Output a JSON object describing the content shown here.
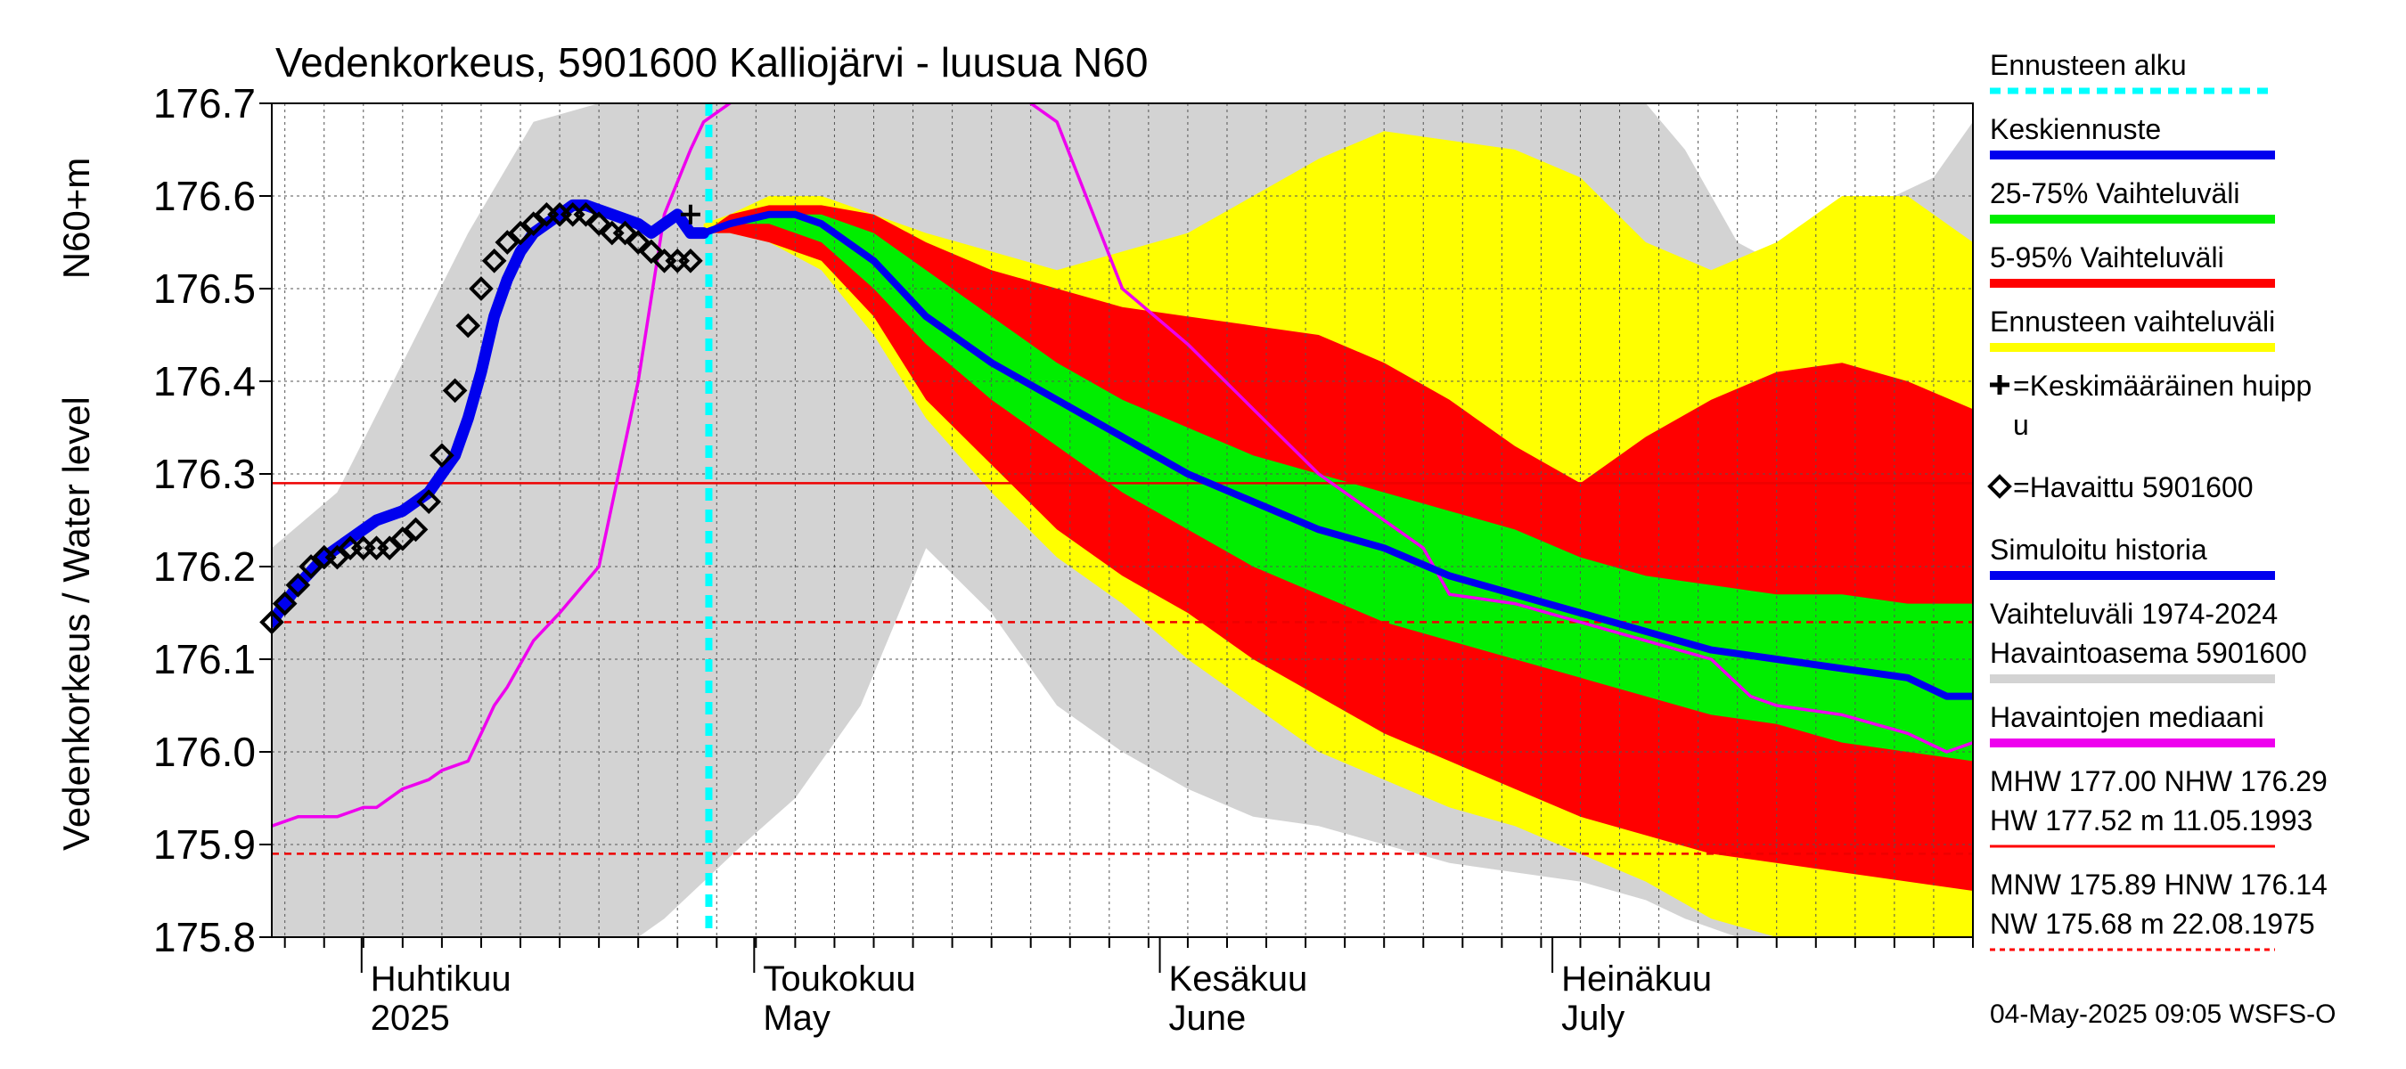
{
  "chart_data": {
    "type": "area",
    "title": "Vedenkorkeus, 5901600 Kalliojärvi - luusua N60",
    "ylabel_unit": "N60+m",
    "ylabel": "Vedenkorkeus / Water level",
    "ylim": [
      175.8,
      176.7
    ],
    "yticks": [
      "176.7",
      "176.6",
      "176.5",
      "176.4",
      "176.3",
      "176.2",
      "176.1",
      "176.0",
      "175.9",
      "175.8"
    ],
    "x_unit": "days since 2025-03-25",
    "xlim": [
      0,
      130
    ],
    "months": [
      {
        "fi": "Huhtikuu",
        "en": "2025",
        "day": 7
      },
      {
        "fi": "Toukokuu",
        "en": "May",
        "day": 37
      },
      {
        "fi": "Kesäkuu",
        "en": "June",
        "day": 68
      },
      {
        "fi": "Heinäkuu",
        "en": "July",
        "day": 98
      }
    ],
    "forecast_start_day": 33.4,
    "reference_lines": [
      {
        "name": "NHW",
        "value": 176.29,
        "style": "solid"
      },
      {
        "name": "HNW",
        "value": 176.14,
        "style": "dashed"
      },
      {
        "name": "MNW",
        "value": 175.89,
        "style": "dashed"
      }
    ],
    "series": [
      {
        "name": "Vaihteluväli 1974-2024 Havaintoasema 5901600",
        "kind": "band",
        "color": "#d3d3d3",
        "x": [
          0,
          5,
          10,
          15,
          20,
          25,
          28,
          30,
          33,
          36,
          40,
          45,
          50,
          55,
          60,
          65,
          70,
          75,
          80,
          85,
          90,
          95,
          100,
          105,
          108,
          112,
          116,
          120,
          124,
          127,
          130
        ],
        "upper": [
          176.22,
          176.28,
          176.42,
          176.56,
          176.68,
          176.7,
          176.7,
          176.7,
          176.7,
          176.7,
          176.7,
          176.7,
          176.7,
          176.7,
          176.7,
          176.7,
          176.7,
          176.7,
          176.7,
          176.7,
          176.7,
          176.7,
          176.7,
          176.7,
          176.65,
          176.55,
          176.52,
          176.6,
          176.6,
          176.62,
          176.68
        ],
        "lower": [
          175.8,
          175.8,
          175.8,
          175.8,
          175.8,
          175.8,
          175.8,
          175.82,
          175.86,
          175.9,
          175.95,
          176.05,
          176.22,
          176.15,
          176.05,
          176.0,
          175.96,
          175.93,
          175.92,
          175.9,
          175.88,
          175.87,
          175.86,
          175.84,
          175.82,
          175.8,
          175.8,
          175.8,
          175.8,
          175.8,
          175.8
        ]
      },
      {
        "name": "Ennusteen vaihteluväli",
        "kind": "band",
        "color": "#ffff00",
        "x": [
          33,
          35,
          38,
          42,
          46,
          50,
          55,
          60,
          65,
          70,
          75,
          80,
          85,
          90,
          95,
          100,
          105,
          110,
          115,
          120,
          125,
          130
        ],
        "upper": [
          176.57,
          176.58,
          176.6,
          176.6,
          176.58,
          176.56,
          176.54,
          176.52,
          176.54,
          176.56,
          176.6,
          176.64,
          176.67,
          176.66,
          176.65,
          176.62,
          176.55,
          176.52,
          176.55,
          176.6,
          176.6,
          176.55
        ],
        "lower": [
          176.56,
          176.56,
          176.55,
          176.52,
          176.45,
          176.36,
          176.28,
          176.21,
          176.16,
          176.1,
          176.05,
          176.0,
          175.97,
          175.94,
          175.92,
          175.89,
          175.86,
          175.82,
          175.8,
          175.8,
          175.8,
          175.8
        ]
      },
      {
        "name": "5-95% Vaihteluväli",
        "kind": "band",
        "color": "#ff0000",
        "x": [
          33,
          35,
          38,
          42,
          46,
          50,
          55,
          60,
          65,
          70,
          75,
          80,
          85,
          90,
          95,
          100,
          105,
          110,
          115,
          120,
          125,
          130
        ],
        "upper": [
          176.56,
          176.58,
          176.59,
          176.59,
          176.58,
          176.55,
          176.52,
          176.5,
          176.48,
          176.47,
          176.46,
          176.45,
          176.42,
          176.38,
          176.33,
          176.29,
          176.34,
          176.38,
          176.41,
          176.42,
          176.4,
          176.37
        ],
        "lower": [
          176.56,
          176.56,
          176.55,
          176.53,
          176.47,
          176.38,
          176.31,
          176.24,
          176.19,
          176.15,
          176.1,
          176.06,
          176.02,
          175.99,
          175.96,
          175.93,
          175.91,
          175.89,
          175.88,
          175.87,
          175.86,
          175.85
        ]
      },
      {
        "name": "25-75% Vaihteluväli",
        "kind": "band",
        "color": "#00ee00",
        "x": [
          33,
          35,
          38,
          42,
          46,
          50,
          55,
          60,
          65,
          70,
          75,
          80,
          85,
          90,
          95,
          100,
          105,
          110,
          115,
          120,
          125,
          130
        ],
        "upper": [
          176.56,
          176.57,
          176.58,
          176.58,
          176.56,
          176.52,
          176.47,
          176.42,
          176.38,
          176.35,
          176.32,
          176.3,
          176.28,
          176.26,
          176.24,
          176.21,
          176.19,
          176.18,
          176.17,
          176.17,
          176.16,
          176.16
        ],
        "lower": [
          176.56,
          176.57,
          176.57,
          176.55,
          176.5,
          176.44,
          176.38,
          176.33,
          176.28,
          176.24,
          176.2,
          176.17,
          176.14,
          176.12,
          176.1,
          176.08,
          176.06,
          176.04,
          176.03,
          176.01,
          176.0,
          175.99
        ]
      },
      {
        "name": "Havaintojen mediaani",
        "kind": "line",
        "color": "#ee00ee",
        "x": [
          0,
          2,
          5,
          7,
          8,
          10,
          12,
          13,
          15,
          16,
          17,
          18,
          20,
          22,
          25,
          28,
          30,
          32,
          33,
          35,
          38,
          40,
          45,
          50,
          55,
          60,
          65,
          70,
          75,
          80,
          85,
          88,
          90,
          95,
          100,
          105,
          110,
          113,
          115,
          120,
          125,
          128,
          130
        ],
        "y": [
          175.92,
          175.93,
          175.93,
          175.94,
          175.94,
          175.96,
          175.97,
          175.98,
          175.99,
          176.02,
          176.05,
          176.07,
          176.12,
          176.15,
          176.2,
          176.4,
          176.58,
          176.65,
          176.68,
          176.7,
          176.73,
          176.75,
          176.75,
          176.75,
          176.73,
          176.68,
          176.5,
          176.44,
          176.37,
          176.3,
          176.25,
          176.22,
          176.17,
          176.16,
          176.14,
          176.12,
          176.1,
          176.06,
          176.05,
          176.04,
          176.02,
          176.0,
          176.01
        ]
      },
      {
        "name": "Simuloitu historia",
        "kind": "line",
        "color": "#0000ee",
        "x": [
          0,
          2,
          4,
          6,
          8,
          10,
          12,
          14,
          15,
          16,
          17,
          18,
          19,
          20,
          21,
          22,
          23,
          24,
          26,
          28,
          29,
          30,
          31,
          32,
          33
        ],
        "y": [
          176.14,
          176.18,
          176.21,
          176.23,
          176.25,
          176.26,
          176.28,
          176.32,
          176.36,
          176.41,
          176.47,
          176.51,
          176.54,
          176.56,
          176.57,
          176.58,
          176.59,
          176.59,
          176.58,
          176.57,
          176.56,
          176.57,
          176.58,
          176.56,
          176.56
        ]
      },
      {
        "name": "Keskiennuste",
        "kind": "line",
        "color": "#0000ee",
        "x": [
          33,
          35,
          38,
          40,
          42,
          44,
          46,
          48,
          50,
          55,
          60,
          65,
          70,
          75,
          80,
          85,
          90,
          95,
          100,
          105,
          110,
          115,
          120,
          125,
          128,
          130
        ],
        "y": [
          176.56,
          176.57,
          176.58,
          176.58,
          176.57,
          176.55,
          176.53,
          176.5,
          176.47,
          176.42,
          176.38,
          176.34,
          176.3,
          176.27,
          176.24,
          176.22,
          176.19,
          176.17,
          176.15,
          176.13,
          176.11,
          176.1,
          176.09,
          176.08,
          176.06,
          176.06
        ]
      },
      {
        "name": "Havaittu 5901600",
        "kind": "markers",
        "color": "#000000",
        "x": [
          0,
          1,
          2,
          3,
          4,
          5,
          6,
          7,
          8,
          9,
          10,
          11,
          12,
          13,
          14,
          15,
          16,
          17,
          18,
          19,
          20,
          21,
          22,
          23,
          24,
          25,
          26,
          27,
          28,
          29,
          30,
          31,
          32
        ],
        "y": [
          176.14,
          176.16,
          176.18,
          176.2,
          176.21,
          176.21,
          176.22,
          176.22,
          176.22,
          176.22,
          176.23,
          176.24,
          176.27,
          176.32,
          176.39,
          176.46,
          176.5,
          176.53,
          176.55,
          176.56,
          176.57,
          176.58,
          176.58,
          176.58,
          176.58,
          176.57,
          176.56,
          176.56,
          176.55,
          176.54,
          176.53,
          176.53,
          176.53
        ]
      },
      {
        "name": "Keskimääräinen huippu",
        "kind": "markers",
        "color": "#000000",
        "x": [
          32
        ],
        "y": [
          176.58
        ]
      }
    ],
    "legend": [
      {
        "label": "Ennusteen alku",
        "color": "#00ffff",
        "style": "dashed"
      },
      {
        "label": "Keskiennuste",
        "color": "#0000ee",
        "style": "line"
      },
      {
        "label": "25-75% Vaihteluväli",
        "color": "#00ee00",
        "style": "line"
      },
      {
        "label": "5-95% Vaihteluväli",
        "color": "#ff0000",
        "style": "line"
      },
      {
        "label": "Ennusteen vaihteluväli",
        "color": "#ffff00",
        "style": "line"
      },
      {
        "label_lines": [
          "=Keskimääräinen huipp",
          "u"
        ],
        "style": "plus"
      },
      {
        "label": "=Havaittu 5901600",
        "style": "diamond"
      },
      {
        "label": "Simuloitu historia",
        "color": "#0000ee",
        "style": "line"
      },
      {
        "label_lines": [
          "Vaihteluväli 1974-2024",
          " Havaintoasema 5901600"
        ],
        "color": "#d3d3d3",
        "style": "line"
      },
      {
        "label": "Havaintojen mediaani",
        "color": "#ee00ee",
        "style": "line"
      },
      {
        "label_lines": [
          "MHW 177.00 NHW 176.29",
          "HW 177.52 m 11.05.1993"
        ],
        "color": "#ff0000",
        "style": "line"
      },
      {
        "label_lines": [
          "MNW 175.89 HNW 176.14",
          "NW 175.68 m 22.08.1975"
        ],
        "color": "#ff0000",
        "style": "dashed"
      }
    ],
    "timestamp": "04-May-2025 09:05 WSFS-O"
  }
}
